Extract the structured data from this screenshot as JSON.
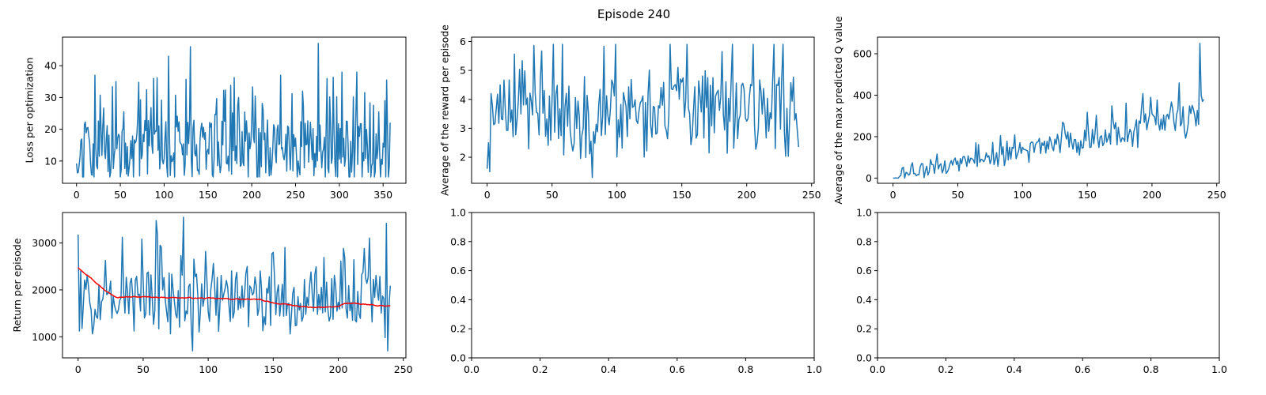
{
  "figure": {
    "suptitle": "Episode 240"
  },
  "chart_data": [
    {
      "type": "line",
      "title": "",
      "xlabel": "",
      "ylabel": "Loss per optimization",
      "xlim": [
        -16,
        376
      ],
      "ylim": [
        3,
        49
      ],
      "xticks": [
        0,
        50,
        100,
        150,
        200,
        250,
        300,
        350
      ],
      "yticks": [
        10,
        20,
        30,
        40
      ],
      "grid": false,
      "series": [
        {
          "color": "#1f77b4",
          "y_length": 359,
          "y_seed": 11,
          "y_base": 13,
          "y_spread": 9,
          "y_min": 5,
          "y_max": 47,
          "y_peaks": [
            [
              21,
              37
            ],
            [
              45,
              35
            ],
            [
              88,
              36
            ],
            [
              105,
              43
            ],
            [
              130,
              46
            ],
            [
              185,
              30
            ],
            [
              233,
              37
            ],
            [
              258,
              32
            ],
            [
              276,
              47
            ],
            [
              303,
              38
            ],
            [
              320,
              38
            ],
            [
              352,
              29
            ]
          ]
        }
      ]
    },
    {
      "type": "line",
      "title": "",
      "xlabel": "",
      "ylabel": "Average of the reward per episode",
      "xlim": [
        -12,
        252
      ],
      "ylim": [
        1.1,
        6.15
      ],
      "xticks": [
        0,
        50,
        100,
        150,
        200,
        250
      ],
      "yticks": [
        2,
        3,
        4,
        5,
        6
      ],
      "grid": false,
      "series": [
        {
          "color": "#1f77b4",
          "y_length": 241,
          "y_seed": 23,
          "y_base": 3.6,
          "y_spread": 1.1,
          "y_min": 1.3,
          "y_max": 5.9,
          "y_start": [
            1.6,
            2.5,
            1.5,
            4.2,
            3.8
          ],
          "y_peaks": [
            [
              51,
              5.9
            ],
            [
              81,
              1.3
            ],
            [
              221,
              5.9
            ]
          ]
        }
      ]
    },
    {
      "type": "line",
      "title": "",
      "xlabel": "",
      "ylabel": "Average of the max predicted Q value",
      "xlim": [
        -12,
        252
      ],
      "ylim": [
        -25,
        680
      ],
      "xticks": [
        0,
        50,
        100,
        150,
        200,
        250
      ],
      "yticks": [
        0,
        200,
        400,
        600
      ],
      "grid": false,
      "series": [
        {
          "color": "#1f77b4",
          "y_length": 241,
          "y_seed": 37,
          "y_trend": [
            5,
            300
          ],
          "y_spread": 75,
          "y_min": 0,
          "y_max": 650,
          "y_peaks": [
            [
              237,
              650
            ],
            [
              238,
              400
            ],
            [
              239,
              370
            ],
            [
              240,
              380
            ]
          ]
        }
      ]
    },
    {
      "type": "line",
      "title": "",
      "xlabel": "",
      "ylabel": "Return per episode",
      "xlim": [
        -12,
        252
      ],
      "ylim": [
        550,
        3650
      ],
      "xticks": [
        0,
        50,
        100,
        150,
        200,
        250
      ],
      "yticks": [
        1000,
        2000,
        3000
      ],
      "grid": false,
      "series": [
        {
          "color": "#1f77b4",
          "y_length": 241,
          "y_seed": 53,
          "y_base": 1800,
          "y_spread": 550,
          "y_min": 650,
          "y_max": 3550,
          "y_start": [
            3180,
            1120,
            2400
          ],
          "y_peaks": [
            [
              60,
              3480
            ],
            [
              81,
              3550
            ],
            [
              88,
              700
            ],
            [
              237,
              3420
            ],
            [
              238,
              700
            ]
          ]
        },
        {
          "color": "#ff0000",
          "y_length": 241,
          "y_trend_points": [
            [
              0,
              2480
            ],
            [
              10,
              2250
            ],
            [
              20,
              2000
            ],
            [
              30,
              1850
            ],
            [
              50,
              1850
            ],
            [
              100,
              1820
            ],
            [
              140,
              1790
            ],
            [
              155,
              1700
            ],
            [
              180,
              1620
            ],
            [
              200,
              1640
            ],
            [
              205,
              1720
            ],
            [
              220,
              1690
            ],
            [
              240,
              1650
            ]
          ]
        }
      ]
    },
    {
      "type": "line",
      "title": "",
      "xlabel": "",
      "ylabel": "",
      "xlim": [
        0,
        1
      ],
      "ylim": [
        0,
        1
      ],
      "xticks": [
        0.0,
        0.2,
        0.4,
        0.6,
        0.8,
        1.0
      ],
      "yticks": [
        0.0,
        0.2,
        0.4,
        0.6,
        0.8,
        1.0
      ],
      "tick_labels": [
        "0.0",
        "0.2",
        "0.4",
        "0.6",
        "0.8",
        "1.0"
      ],
      "grid": false,
      "series": []
    },
    {
      "type": "line",
      "title": "",
      "xlabel": "",
      "ylabel": "",
      "xlim": [
        0,
        1
      ],
      "ylim": [
        0,
        1
      ],
      "xticks": [
        0.0,
        0.2,
        0.4,
        0.6,
        0.8,
        1.0
      ],
      "yticks": [
        0.0,
        0.2,
        0.4,
        0.6,
        0.8,
        1.0
      ],
      "tick_labels": [
        "0.0",
        "0.2",
        "0.4",
        "0.6",
        "0.8",
        "1.0"
      ],
      "grid": false,
      "series": []
    }
  ]
}
